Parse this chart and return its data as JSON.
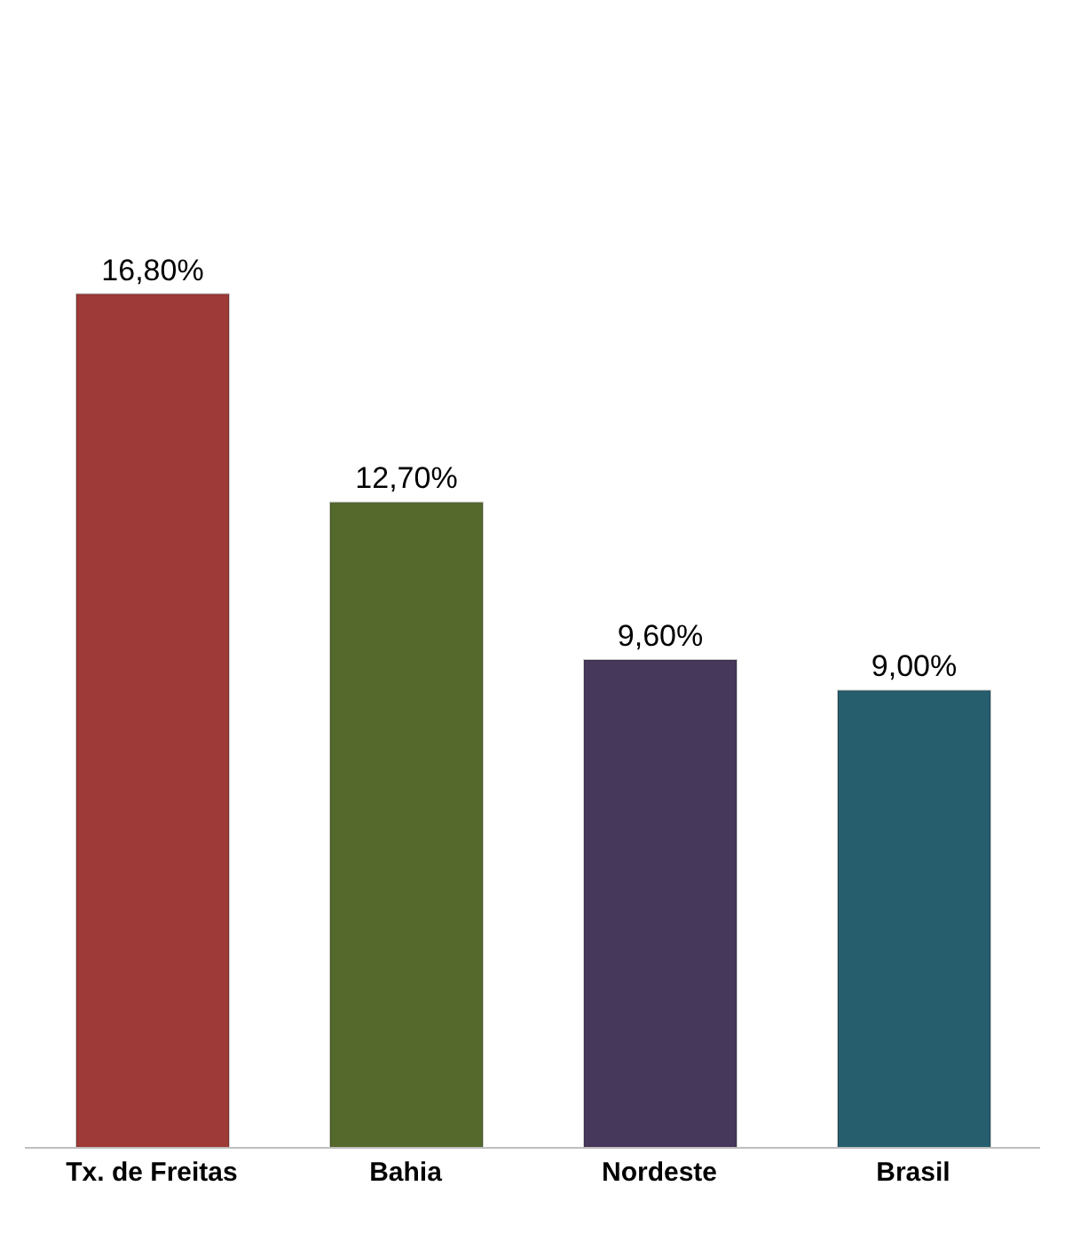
{
  "chart_data": {
    "type": "bar",
    "categories": [
      "Tx. de Freitas",
      "Bahia",
      "Nordeste",
      "Brasil"
    ],
    "values": [
      16.8,
      12.7,
      9.6,
      9.0
    ],
    "colors": [
      "#9e3a38",
      "#56692c",
      "#46385a",
      "#265e6e"
    ],
    "value_labels": [
      "16,80%",
      "12,70%",
      "9,60%",
      "9,00%"
    ]
  }
}
